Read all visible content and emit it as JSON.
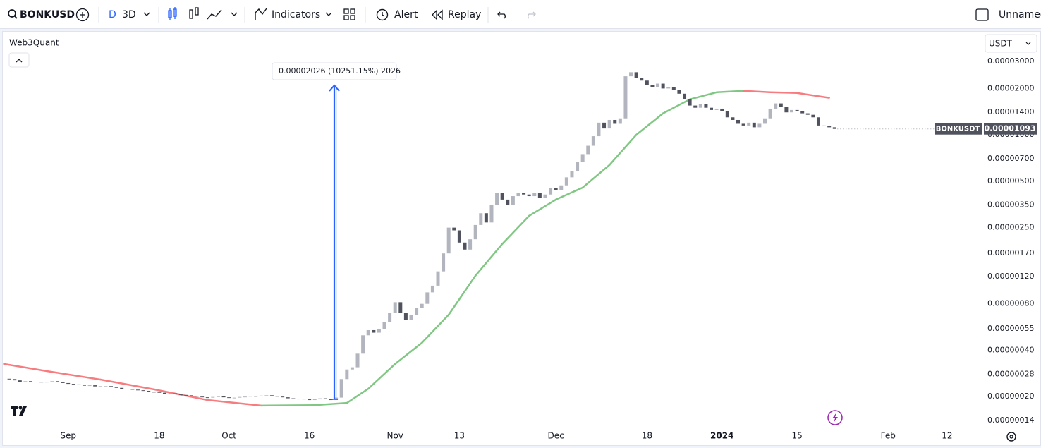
{
  "toolbar": {
    "symbol": "BONKUSD",
    "interval_label": "D",
    "interval": "3D",
    "indicators": "Indicators",
    "alert": "Alert",
    "replay": "Replay",
    "layout_name": "Unnamed"
  },
  "chart_data": {
    "type": "candlestick",
    "legend_title": "Web3Quant",
    "currency": "USDT",
    "last_price_label": "0.00001093",
    "measure_label": "0.00002026 (10251.15%) 2026",
    "log_scale": true,
    "grid": false,
    "series": [
      {
        "name": "BONKUSDT",
        "up_color": "#b2b5be",
        "down_color": "#50535e",
        "values": [
          2.6e-07,
          2.55e-07,
          2.5e-07,
          2.52e-07,
          2.48e-07,
          2.5e-07,
          2.47e-07,
          2.5e-07,
          2.52e-07,
          2.49e-07,
          2.45e-07,
          2.42e-07,
          2.4e-07,
          2.38e-07,
          2.36e-07,
          2.37e-07,
          2.33e-07,
          2.3e-07,
          2.34e-07,
          2.31e-07,
          2.28e-07,
          2.25e-07,
          2.24e-07,
          2.22e-07,
          2.2e-07,
          2.18e-07,
          2.15e-07,
          2.14e-07,
          2.12e-07,
          2.08e-07,
          2.1e-07,
          2.07e-07,
          2.05e-07,
          2.04e-07,
          2.02e-07,
          2e-07,
          1.98e-07,
          1.97e-07,
          1.99e-07,
          2.01e-07,
          1.98e-07,
          1.96e-07,
          1.97e-07,
          1.99e-07,
          2e-07,
          2.02e-07,
          2.01e-07,
          2.03e-07,
          2.04e-07,
          2.02e-07,
          2e-07,
          1.98e-07,
          1.95e-07,
          1.93e-07,
          1.94e-07,
          1.92e-07,
          1.9e-07,
          1.92e-07,
          1.95e-07,
          1.93e-07,
          1.9e-07,
          1.97e-07,
          2.6e-07,
          3e-07,
          3.1e-07,
          3.8e-07,
          5e-07,
          5.4e-07,
          5.2e-07,
          5.5e-07,
          6.1e-07,
          7e-07,
          8.2e-07,
          7e-07,
          6.3e-07,
          6.8e-07,
          7.5e-07,
          8e-07,
          9.5e-07,
          1.05e-06,
          1.3e-06,
          1.7e-06,
          2.5e-06,
          2.4e-06,
          2e-06,
          1.8e-06,
          2.1e-06,
          2.6e-06,
          3.1e-06,
          2.7e-06,
          3.5e-06,
          4.2e-06,
          3.8e-06,
          3.5e-06,
          4e-06,
          4.2e-06,
          4.1e-06,
          4e-06,
          4.2e-06,
          3.9e-06,
          4.1e-06,
          4.5e-06,
          4.4e-06,
          4.7e-06,
          5.3e-06,
          5.8e-06,
          6.7e-06,
          7.5e-06,
          8.5e-06,
          9.8e-06,
          1.2e-05,
          1.1e-05,
          1.25e-05,
          1.18e-05,
          1.28e-05,
          2.4e-05,
          2.55e-05,
          2.35e-05,
          2.25e-05,
          2.1e-05,
          2.05e-05,
          2.15e-05,
          2e-05,
          2.05e-05,
          1.95e-05,
          1.85e-05,
          1.7e-05,
          1.55e-05,
          1.5e-05,
          1.58e-05,
          1.5e-05,
          1.45e-05,
          1.48e-05,
          1.42e-05,
          1.3e-05,
          1.25e-05,
          1.18e-05,
          1.15e-05,
          1.2e-05,
          1.12e-05,
          1.18e-05,
          1.28e-05,
          1.48e-05,
          1.6e-05,
          1.52e-05,
          1.4e-05,
          1.45e-05,
          1.42e-05,
          1.38e-05,
          1.35e-05,
          1.3e-05,
          1.15e-05,
          1.14e-05,
          1.12e-05,
          1.093e-05
        ]
      }
    ],
    "ma": {
      "rise_color": "#81c784",
      "fall_color": "#f77c80",
      "x": [
        -1,
        7,
        17,
        27,
        37,
        47,
        57,
        63,
        67,
        72,
        77,
        82,
        87,
        92,
        97,
        102,
        107,
        112,
        117,
        122,
        127,
        132,
        137,
        142,
        147,
        153
      ],
      "values": [
        3.26e-07,
        2.93e-07,
        2.58e-07,
        2.23e-07,
        1.9e-07,
        1.75e-07,
        1.76e-07,
        1.82e-07,
        2.25e-07,
        3.26e-07,
        4.47e-07,
        6.8e-07,
        1.22e-06,
        1.96e-06,
        2.98e-06,
        3.8e-06,
        4.55e-06,
        6.38e-06,
        1e-05,
        1.38e-05,
        1.7e-05,
        1.89e-05,
        1.93e-05,
        1.89e-05,
        1.87e-05,
        1.74e-05
      ]
    },
    "xlim": [
      -1.2,
      181.6
    ],
    "xticks": [
      {
        "value": 11,
        "label": "Sep"
      },
      {
        "value": 28,
        "label": "18"
      },
      {
        "value": 41,
        "label": "Oct"
      },
      {
        "value": 56,
        "label": "16"
      },
      {
        "value": 72,
        "label": "Nov"
      },
      {
        "value": 84,
        "label": "13"
      },
      {
        "value": 102,
        "label": "Dec"
      },
      {
        "value": 119,
        "label": "18"
      },
      {
        "value": 133,
        "label": "2024"
      },
      {
        "value": 147,
        "label": "15"
      },
      {
        "value": 164,
        "label": "Feb"
      },
      {
        "value": 175,
        "label": "12"
      }
    ],
    "ylim": [
      1.26e-07,
      4.62e-05
    ],
    "yticks": [
      {
        "value": 3e-05,
        "label": "0.00003000"
      },
      {
        "value": 2e-05,
        "label": "0.00002000"
      },
      {
        "value": 1.4e-05,
        "label": "0.00001400"
      },
      {
        "value": 1e-05,
        "label": "0.00001000"
      },
      {
        "value": 7e-06,
        "label": "0.00000700"
      },
      {
        "value": 5e-06,
        "label": "0.00000500"
      },
      {
        "value": 3.5e-06,
        "label": "0.00000350"
      },
      {
        "value": 2.5e-06,
        "label": "0.00000250"
      },
      {
        "value": 1.7e-06,
        "label": "0.00000170"
      },
      {
        "value": 1.2e-06,
        "label": "0.00000120"
      },
      {
        "value": 8e-07,
        "label": "0.00000080"
      },
      {
        "value": 5.5e-07,
        "label": "0.00000055"
      },
      {
        "value": 4e-07,
        "label": "0.00000040"
      },
      {
        "value": 2.8e-07,
        "label": "0.00000028"
      },
      {
        "value": 2e-07,
        "label": "0.00000020"
      },
      {
        "value": 1.4e-07,
        "label": "0.00000014"
      }
    ]
  }
}
